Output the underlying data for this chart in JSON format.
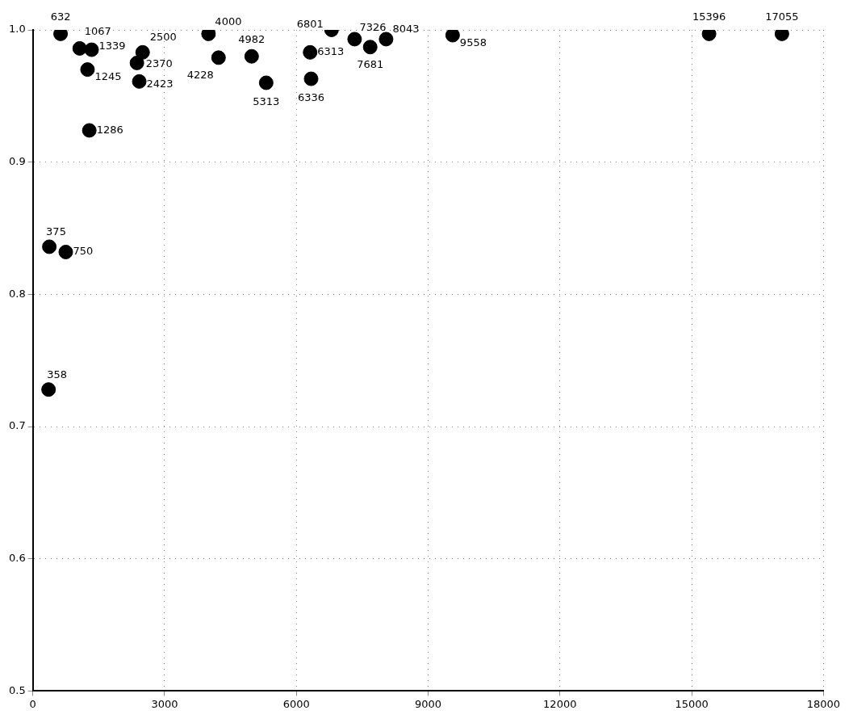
{
  "chart_data": {
    "type": "scatter",
    "x": [
      358,
      375,
      632,
      750,
      1067,
      1245,
      1286,
      1339,
      2370,
      2423,
      2500,
      4000,
      4228,
      4982,
      5313,
      6313,
      6336,
      6801,
      7326,
      7681,
      8043,
      9558,
      15396,
      17055
    ],
    "series": [
      {
        "color": "#000000",
        "values": [
          0.728,
          0.836,
          0.997,
          0.832,
          0.986,
          0.97,
          0.924,
          0.985,
          0.975,
          0.961,
          0.983,
          0.997,
          0.979,
          0.98,
          0.96,
          0.983,
          0.963,
          1.0,
          0.993,
          0.987,
          0.993,
          0.996,
          0.997,
          0.997
        ]
      }
    ],
    "annotations": [
      {
        "text": "358",
        "x": 358,
        "y": 0.728
      },
      {
        "text": "375",
        "x": 375,
        "y": 0.836
      },
      {
        "text": "632",
        "x": 632,
        "y": 0.997
      },
      {
        "text": "750",
        "x": 750,
        "y": 0.832
      },
      {
        "text": "1067",
        "x": 1067,
        "y": 0.986
      },
      {
        "text": "1245",
        "x": 1245,
        "y": 0.97
      },
      {
        "text": "1286",
        "x": 1286,
        "y": 0.924
      },
      {
        "text": "1339",
        "x": 1339,
        "y": 0.985
      },
      {
        "text": "2370",
        "x": 2370,
        "y": 0.975
      },
      {
        "text": "2423",
        "x": 2423,
        "y": 0.961
      },
      {
        "text": "2500",
        "x": 2500,
        "y": 0.983
      },
      {
        "text": "4000",
        "x": 4000,
        "y": 0.997
      },
      {
        "text": "4228",
        "x": 4228,
        "y": 0.979
      },
      {
        "text": "4982",
        "x": 4982,
        "y": 0.98
      },
      {
        "text": "5313",
        "x": 5313,
        "y": 0.96
      },
      {
        "text": "6313",
        "x": 6313,
        "y": 0.983
      },
      {
        "text": "6336",
        "x": 6336,
        "y": 0.963
      },
      {
        "text": "6801",
        "x": 6801,
        "y": 1.0
      },
      {
        "text": "7326",
        "x": 7326,
        "y": 0.993
      },
      {
        "text": "7681",
        "x": 7681,
        "y": 0.987
      },
      {
        "text": "8043",
        "x": 8043,
        "y": 0.993
      },
      {
        "text": "9558",
        "x": 9558,
        "y": 0.996
      },
      {
        "text": "15396",
        "x": 15396,
        "y": 0.997
      },
      {
        "text": "17055",
        "x": 17055,
        "y": 0.997
      }
    ],
    "xlim": [
      0,
      18000
    ],
    "xticks": [
      0,
      3000,
      6000,
      9000,
      12000,
      15000,
      18000
    ],
    "ylim": [
      0.5,
      1.0
    ],
    "yticks": [
      {
        "value": 0.5,
        "label": "0.5"
      },
      {
        "value": 0.6,
        "label": "0.6"
      },
      {
        "value": 0.7,
        "label": "0.7"
      },
      {
        "value": 0.8,
        "label": "0.8"
      },
      {
        "value": 0.9,
        "label": "0.9"
      },
      {
        "value": 1.0,
        "label": "1.0"
      }
    ],
    "grid": true,
    "legend": false,
    "marker": "circle"
  }
}
